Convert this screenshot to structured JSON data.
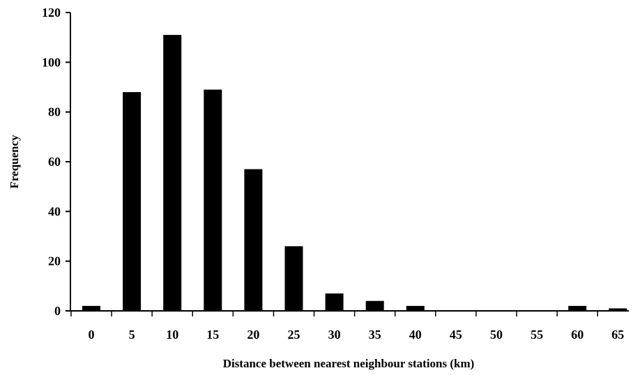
{
  "chart_data": {
    "type": "bar",
    "title": "",
    "xlabel": "Distance between nearest neighbour stations (km)",
    "ylabel": "Frequency",
    "categories": [
      "0",
      "5",
      "10",
      "15",
      "20",
      "25",
      "30",
      "35",
      "40",
      "45",
      "50",
      "55",
      "60",
      "65"
    ],
    "values": [
      2,
      88,
      111,
      89,
      57,
      26,
      7,
      4,
      2,
      0,
      0,
      0,
      2,
      1
    ],
    "yticks": [
      "0",
      "20",
      "40",
      "60",
      "80",
      "100",
      "120"
    ],
    "ylim": [
      0,
      120
    ],
    "grid": false,
    "legend": "none",
    "colors": {
      "bar": "#000000",
      "axis": "#000000",
      "background": "#ffffff"
    }
  }
}
